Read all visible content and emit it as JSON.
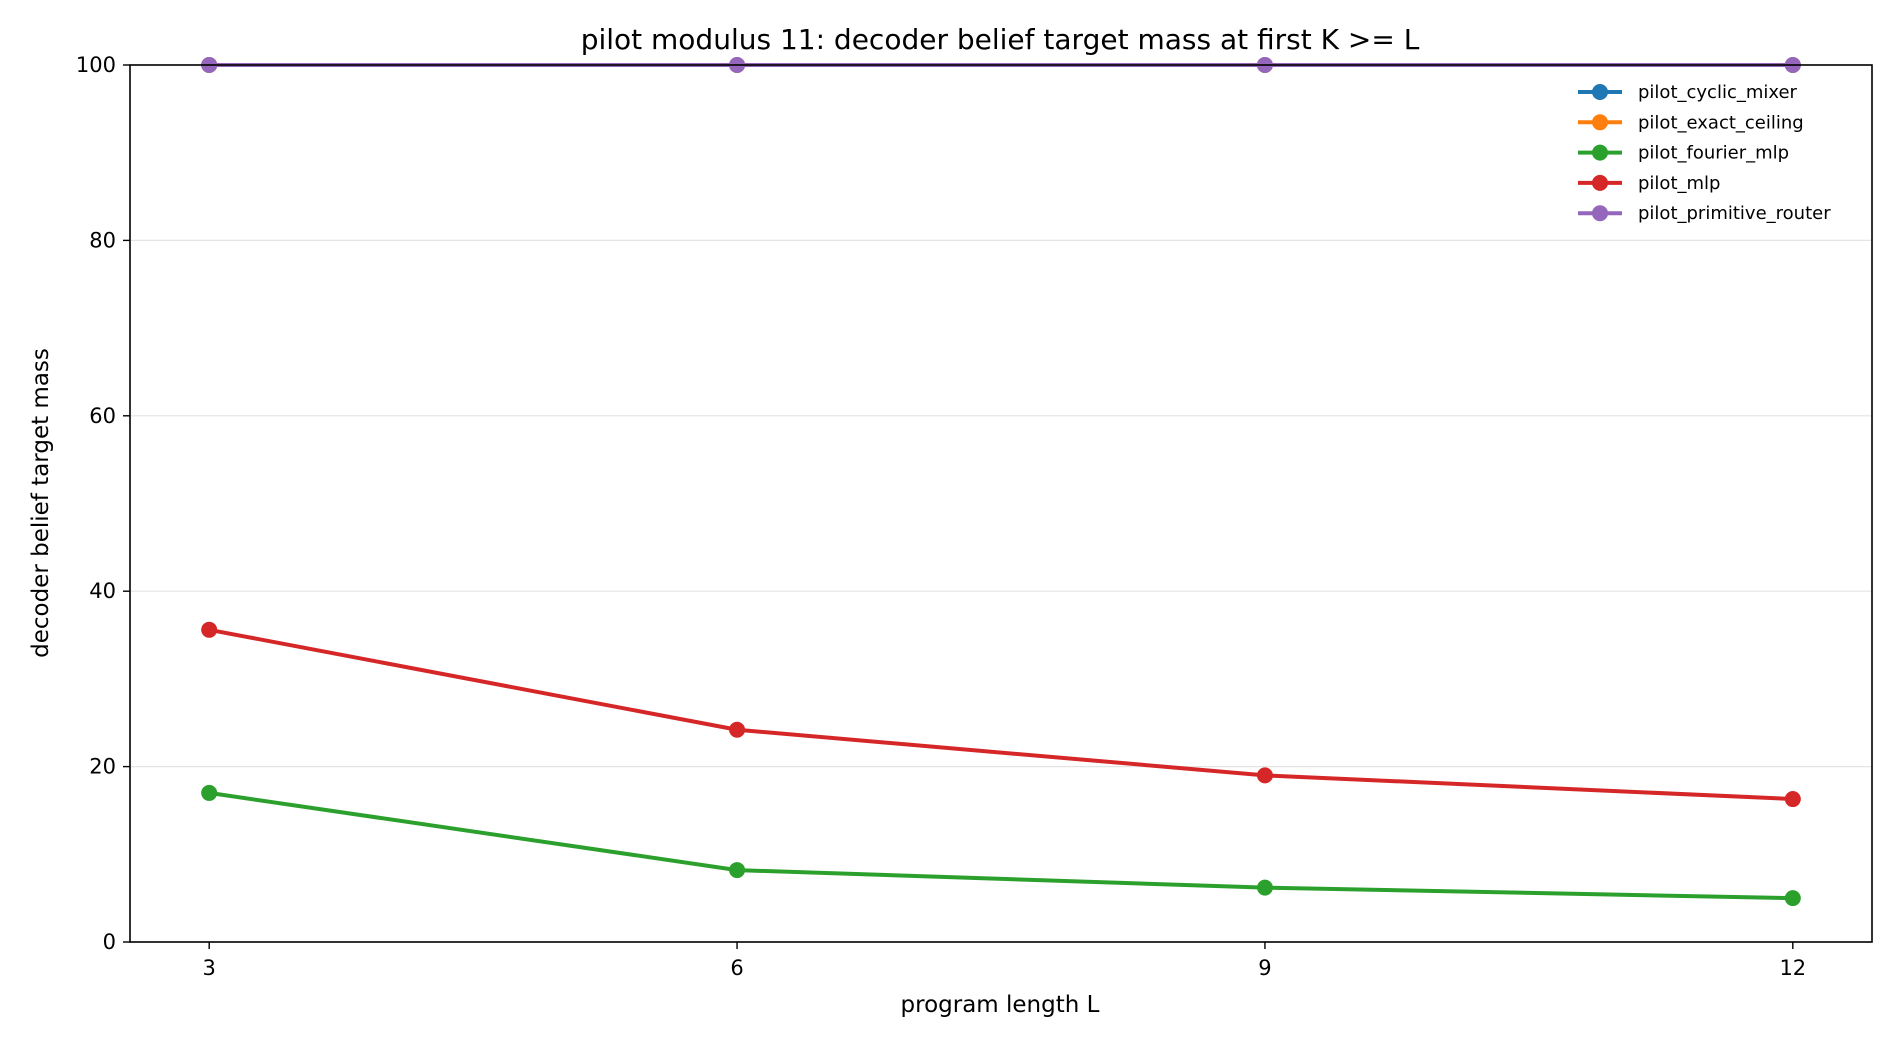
{
  "chart_data": {
    "type": "line",
    "title": "pilot modulus 11: decoder belief target mass at first K >= L",
    "xlabel": "program length L",
    "ylabel": "decoder belief target mass",
    "x": [
      3,
      6,
      9,
      12
    ],
    "x_ticks": [
      "3",
      "6",
      "9",
      "12"
    ],
    "y_ticks": [
      "0",
      "20",
      "40",
      "60",
      "80",
      "100"
    ],
    "xlim": [
      2.55,
      12.45
    ],
    "ylim": [
      0,
      100
    ],
    "grid": "horizontal",
    "legend_position": "top-right",
    "series": [
      {
        "name": "pilot_cyclic_mixer",
        "color": "#1f77b4",
        "values": [
          100,
          100,
          100,
          100
        ]
      },
      {
        "name": "pilot_exact_ceiling",
        "color": "#ff7f0e",
        "values": [
          100,
          100,
          100,
          100
        ]
      },
      {
        "name": "pilot_fourier_mlp",
        "color": "#2ca02c",
        "values": [
          17.0,
          8.2,
          6.2,
          5.0
        ]
      },
      {
        "name": "pilot_mlp",
        "color": "#d62728",
        "values": [
          35.6,
          24.2,
          19.0,
          16.3
        ]
      },
      {
        "name": "pilot_primitive_router",
        "color": "#9467bd",
        "values": [
          100,
          100,
          100,
          100
        ]
      }
    ]
  }
}
